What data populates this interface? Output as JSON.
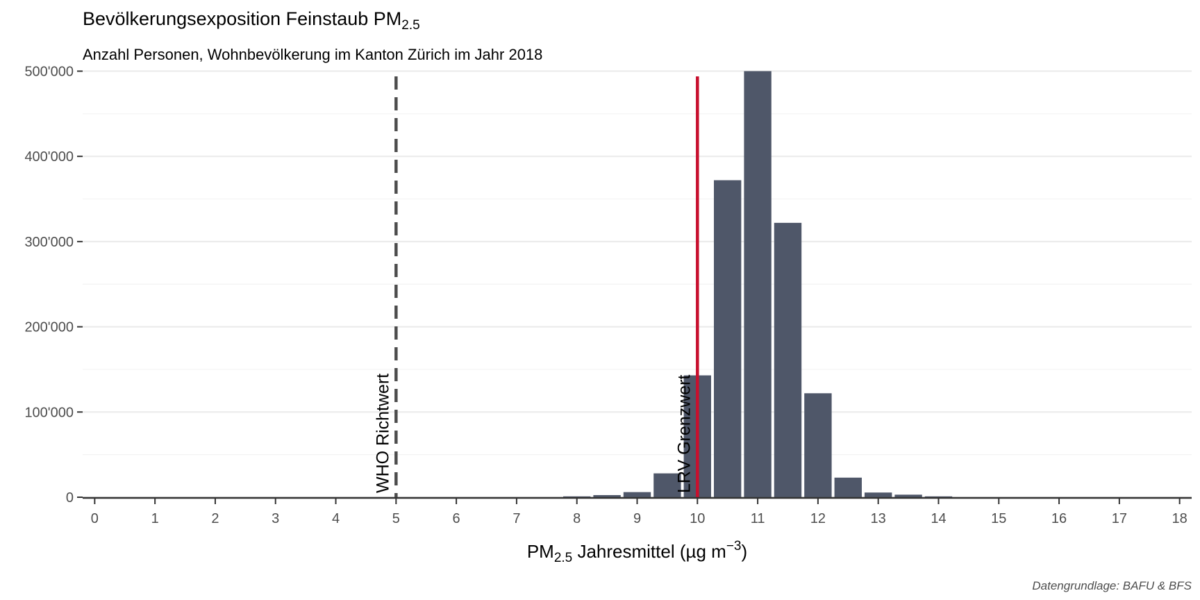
{
  "title": {
    "main": "Bevölkerungsexposition Feinstaub PM",
    "sub": "2.5"
  },
  "subtitle": "Anzahl Personen, Wohnbevölkerung im Kanton Zürich im Jahr 2018",
  "caption": "Datengrundlage: BAFU & BFS",
  "colors": {
    "bar": "#4f5769",
    "grenzwert_line": "#c8102e",
    "richtwert_line": "#4d4d4d",
    "grid": "#ebebeb"
  },
  "chart_data": {
    "type": "bar",
    "x_label": {
      "prefix": "PM",
      "sub": "2.5",
      "mid": " Jahresmittel (µg m",
      "sup": "−3",
      "suffix": ")"
    },
    "x_ticks": [
      "0",
      "1",
      "2",
      "3",
      "4",
      "5",
      "6",
      "7",
      "8",
      "9",
      "10",
      "11",
      "12",
      "13",
      "14",
      "15",
      "16",
      "17",
      "18"
    ],
    "y_ticks": [
      {
        "value": 0,
        "label": "0"
      },
      {
        "value": 100000,
        "label": "100'000"
      },
      {
        "value": 200000,
        "label": "200'000"
      },
      {
        "value": 300000,
        "label": "300'000"
      },
      {
        "value": 400000,
        "label": "400'000"
      },
      {
        "value": 500000,
        "label": "500'000"
      }
    ],
    "xlim": [
      -0.2,
      18.2
    ],
    "ylim": [
      0,
      502000
    ],
    "bin_width": 0.5,
    "bars": [
      {
        "x": 8.0,
        "value": 1000
      },
      {
        "x": 8.5,
        "value": 2500
      },
      {
        "x": 9.0,
        "value": 6000
      },
      {
        "x": 9.5,
        "value": 28000
      },
      {
        "x": 10.0,
        "value": 143000
      },
      {
        "x": 10.5,
        "value": 372000
      },
      {
        "x": 11.0,
        "value": 500000
      },
      {
        "x": 11.5,
        "value": 322000
      },
      {
        "x": 12.0,
        "value": 122000
      },
      {
        "x": 12.5,
        "value": 23000
      },
      {
        "x": 13.0,
        "value": 5500
      },
      {
        "x": 13.5,
        "value": 3000
      },
      {
        "x": 14.0,
        "value": 1000
      }
    ],
    "reference_lines": [
      {
        "x": 5,
        "label": "WHO Richtwert",
        "style": "dashed"
      },
      {
        "x": 10,
        "label": "LRV Grenzwert",
        "style": "solid"
      }
    ],
    "grid": true
  }
}
